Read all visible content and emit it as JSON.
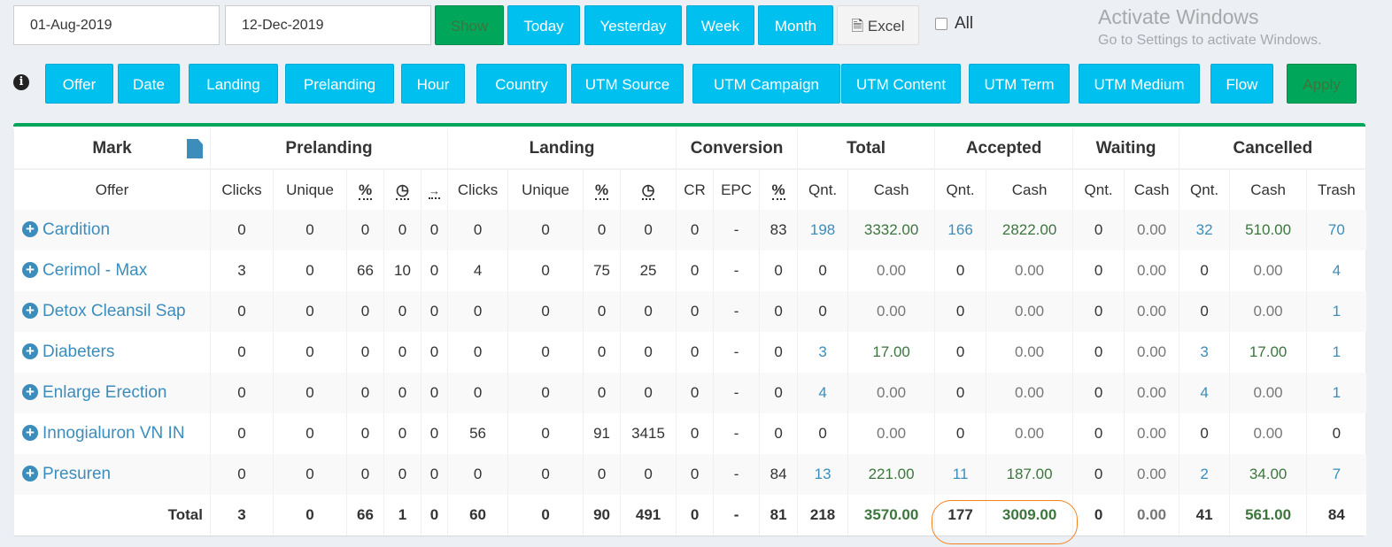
{
  "filters": {
    "date_from": "01-Aug-2019",
    "date_to": "12-Dec-2019",
    "show": "Show",
    "today": "Today",
    "yesterday": "Yesterday",
    "week": "Week",
    "month": "Month",
    "excel": "Excel",
    "all": "All"
  },
  "groupby": {
    "info_icon": "i",
    "buttons": [
      "Offer",
      "Date",
      "Landing",
      "Prelanding",
      "Hour",
      "Country",
      "UTM Source",
      "UTM Campaign",
      "UTM Content",
      "UTM Term",
      "UTM Medium",
      "Flow"
    ],
    "apply": "Apply"
  },
  "colors": {
    "accent": "#00c0ef",
    "success": "#00a65a",
    "link": "#3c8dbc",
    "cash": "#3c763d"
  },
  "table": {
    "groups": [
      "Mark",
      "Prelanding",
      "Landing",
      "Conversion",
      "Total",
      "Accepted",
      "Waiting",
      "Cancelled"
    ],
    "columns": [
      "Offer",
      "Clicks",
      "Unique",
      "%",
      "clock-icon",
      "arrow-icon",
      "Clicks",
      "Unique",
      "%",
      "clock-icon",
      "CR",
      "EPC",
      "%",
      "Qnt.",
      "Cash",
      "Qnt.",
      "Cash",
      "Qnt.",
      "Cash",
      "Qnt.",
      "Cash",
      "Trash"
    ],
    "rows": [
      {
        "offer": "Cardition",
        "cells": [
          "0",
          "0",
          "0",
          "0",
          "0",
          "0",
          "0",
          "0",
          "0",
          "0",
          "-",
          "83",
          "198",
          "3332.00",
          "166",
          "2822.00",
          "0",
          "0.00",
          "32",
          "510.00",
          "70"
        ]
      },
      {
        "offer": "Cerimol - Max",
        "cells": [
          "3",
          "0",
          "66",
          "10",
          "0",
          "4",
          "0",
          "75",
          "25",
          "0",
          "-",
          "0",
          "0",
          "0.00",
          "0",
          "0.00",
          "0",
          "0.00",
          "0",
          "0.00",
          "4"
        ]
      },
      {
        "offer": "Detox Cleansil Sap",
        "cells": [
          "0",
          "0",
          "0",
          "0",
          "0",
          "0",
          "0",
          "0",
          "0",
          "0",
          "-",
          "0",
          "0",
          "0.00",
          "0",
          "0.00",
          "0",
          "0.00",
          "0",
          "0.00",
          "1"
        ]
      },
      {
        "offer": "Diabeters",
        "cells": [
          "0",
          "0",
          "0",
          "0",
          "0",
          "0",
          "0",
          "0",
          "0",
          "0",
          "-",
          "0",
          "3",
          "17.00",
          "0",
          "0.00",
          "0",
          "0.00",
          "3",
          "17.00",
          "1"
        ]
      },
      {
        "offer": "Enlarge Erection",
        "cells": [
          "0",
          "0",
          "0",
          "0",
          "0",
          "0",
          "0",
          "0",
          "0",
          "0",
          "-",
          "0",
          "4",
          "0.00",
          "0",
          "0.00",
          "0",
          "0.00",
          "4",
          "0.00",
          "1"
        ]
      },
      {
        "offer": "Innogialuron VN IN",
        "cells": [
          "0",
          "0",
          "0",
          "0",
          "0",
          "56",
          "0",
          "91",
          "3415",
          "0",
          "-",
          "0",
          "0",
          "0.00",
          "0",
          "0.00",
          "0",
          "0.00",
          "0",
          "0.00",
          "0"
        ]
      },
      {
        "offer": "Presuren",
        "cells": [
          "0",
          "0",
          "0",
          "0",
          "0",
          "0",
          "0",
          "0",
          "0",
          "0",
          "-",
          "84",
          "13",
          "221.00",
          "11",
          "187.00",
          "0",
          "0.00",
          "2",
          "34.00",
          "7"
        ]
      }
    ],
    "total": {
      "label": "Total",
      "cells": [
        "3",
        "0",
        "66",
        "1",
        "0",
        "60",
        "0",
        "90",
        "491",
        "0",
        "-",
        "81",
        "218",
        "3570.00",
        "177",
        "3009.00",
        "0",
        "0.00",
        "41",
        "561.00",
        "84"
      ]
    }
  },
  "watermark": {
    "line1": "Activate Windows",
    "line2": "Go to Settings to activate Windows."
  }
}
